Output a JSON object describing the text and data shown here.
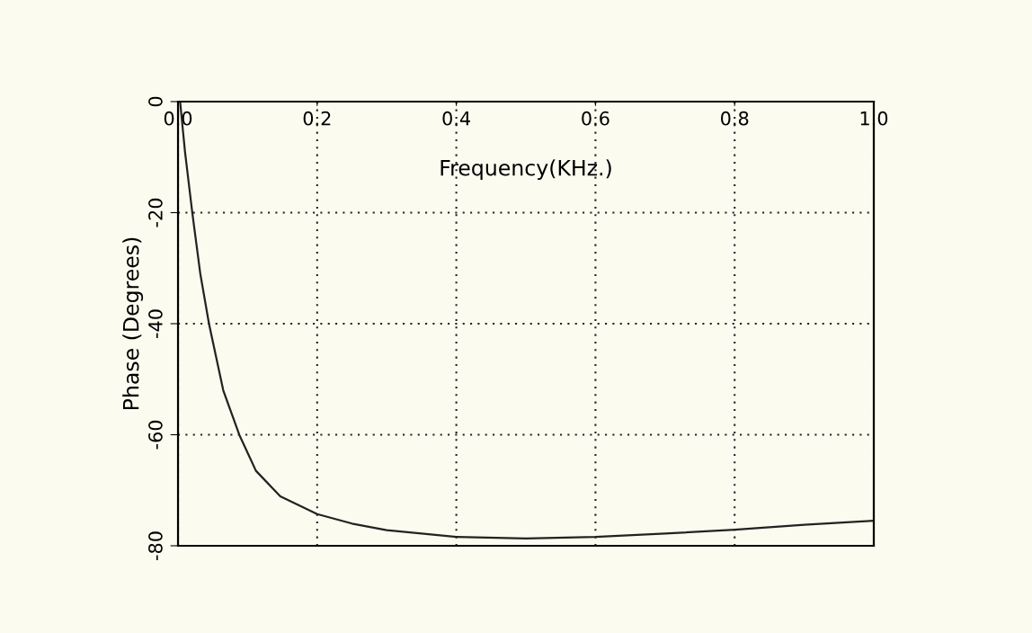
{
  "chart_data": {
    "type": "line",
    "xlabel": "Frequency(KHz.)",
    "ylabel": "Phase (Degrees)",
    "x": [
      0.003,
      0.01,
      0.0205,
      0.032,
      0.0445,
      0.065,
      0.088,
      0.112,
      0.147,
      0.2,
      0.25,
      0.3,
      0.4,
      0.5,
      0.6,
      0.7,
      0.8,
      0.9,
      1.0
    ],
    "series": [
      {
        "color": "#222222",
        "values": [
          0,
          -9,
          -20,
          -31,
          -40,
          -52,
          -60,
          -66.5,
          -71.1,
          -74.3,
          -76,
          -77.2,
          -78.4,
          -78.7,
          -78.4,
          -77.8,
          -77.1,
          -76.2,
          -75.5
        ]
      }
    ],
    "xlim": [
      0,
      1.0
    ],
    "ylim": [
      -80,
      0
    ],
    "xticks": [
      {
        "value": 0,
        "label": "0.0"
      },
      0.2,
      0.4,
      0.6,
      0.8,
      {
        "value": 1.0,
        "label": "1.0"
      }
    ],
    "yticks": [
      -80,
      -60,
      -40,
      -20,
      0
    ],
    "grid": true,
    "line_style": "solid",
    "marker": "none"
  }
}
